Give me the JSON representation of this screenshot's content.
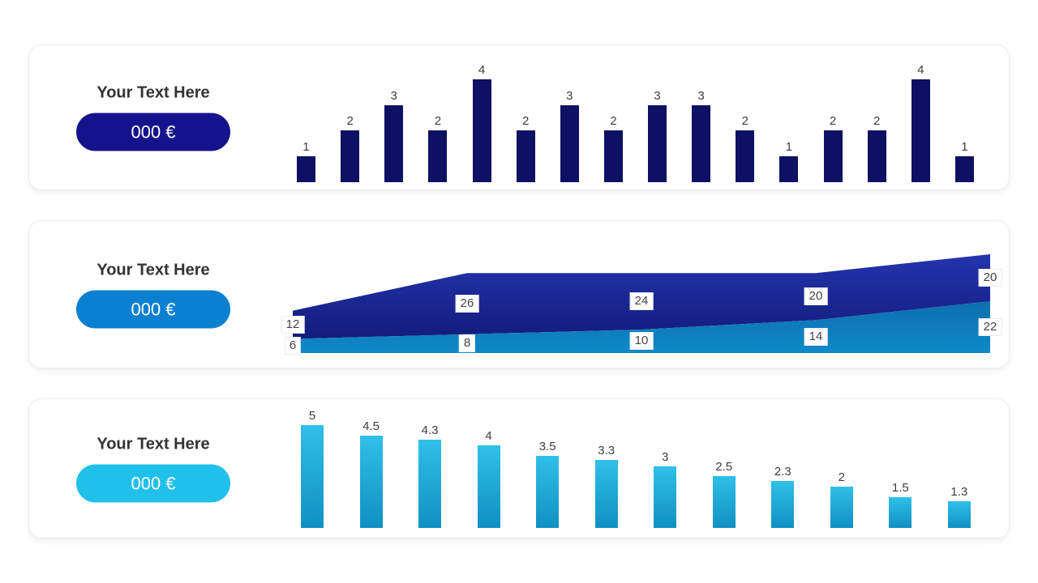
{
  "page": {
    "background": "#ffffff"
  },
  "cards": [
    {
      "title": "Your Text Here",
      "badge_label": "000 €",
      "badge_color": "#15138c",
      "badge_text_color": "#ffffff"
    },
    {
      "title": "Your Text Here",
      "badge_label": "000 €",
      "badge_color": "#0b80d0",
      "badge_text_color": "#ffffff"
    },
    {
      "title": "Your Text Here",
      "badge_label": "000 €",
      "badge_color": "#1fc0ea",
      "badge_text_color": "#ffffff"
    }
  ],
  "chart_data": [
    {
      "type": "bar",
      "values": [
        1,
        2,
        3,
        2,
        4,
        2,
        3,
        2,
        3,
        3,
        2,
        1,
        2,
        2,
        4,
        1
      ],
      "data_labels": true,
      "bar_color": "#0d1063",
      "label_color": "#3d3d3d",
      "title": "",
      "xlabel": "",
      "ylabel": "",
      "ylim": [
        0,
        4
      ],
      "axes_visible": false,
      "grid": false,
      "legend": "none"
    },
    {
      "type": "area",
      "stacked": true,
      "x": [
        1,
        2,
        3,
        4,
        5
      ],
      "series": [
        {
          "name": "upper-dark-blue",
          "values": [
            12,
            26,
            24,
            20,
            20
          ],
          "gradient": [
            "#2434ae",
            "#131c7c"
          ]
        },
        {
          "name": "lower-light-blue",
          "values": [
            6,
            8,
            10,
            14,
            22
          ],
          "gradient": [
            "#0d6fae",
            "#1089c8"
          ]
        }
      ],
      "data_labels": true,
      "label_box_bg": "#ffffff",
      "label_color": "#444444",
      "title": "",
      "xlabel": "",
      "ylabel": "",
      "axes_visible": false,
      "grid": false,
      "legend": "none"
    },
    {
      "type": "bar",
      "values": [
        5,
        4.5,
        4.3,
        4,
        3.5,
        3.3,
        3,
        2.5,
        2.3,
        2,
        1.5,
        1.3
      ],
      "data_labels": true,
      "bar_gradient": [
        "#2fc0e8",
        "#1090c3"
      ],
      "label_color": "#3d3d3d",
      "title": "",
      "xlabel": "",
      "ylabel": "",
      "ylim": [
        0,
        5
      ],
      "axes_visible": false,
      "grid": false,
      "legend": "none"
    }
  ]
}
